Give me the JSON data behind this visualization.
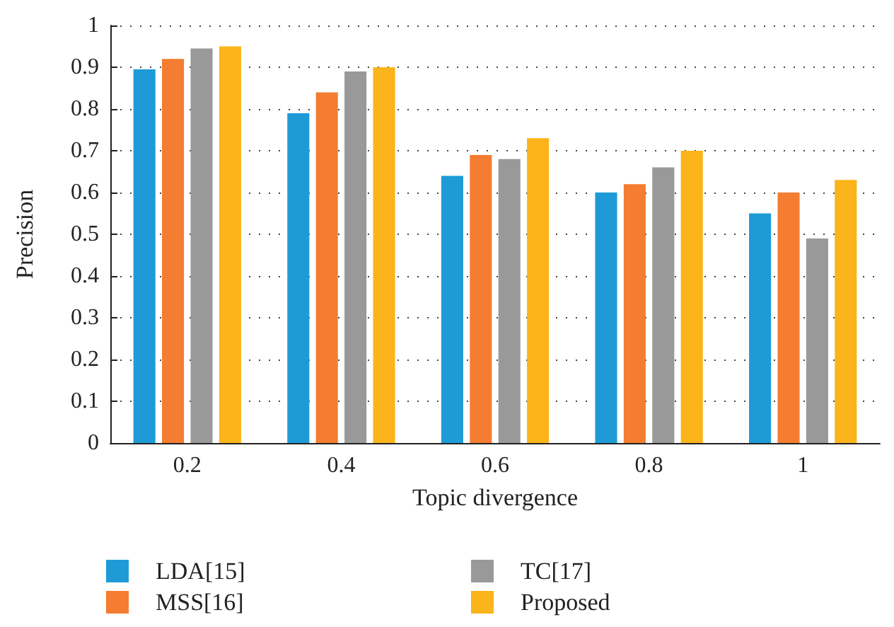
{
  "chart_data": {
    "type": "bar",
    "xlabel": "Topic divergence",
    "ylabel": "Precision",
    "categories": [
      "0.2",
      "0.4",
      "0.6",
      "0.8",
      "1"
    ],
    "series": [
      {
        "name": "LDA[15]",
        "color": "#1e9bd7",
        "values": [
          0.895,
          0.79,
          0.64,
          0.6,
          0.55
        ]
      },
      {
        "name": "MSS[16]",
        "color": "#f47d31",
        "values": [
          0.92,
          0.84,
          0.69,
          0.62,
          0.6
        ]
      },
      {
        "name": "TC[17]",
        "color": "#999999",
        "values": [
          0.945,
          0.89,
          0.68,
          0.66,
          0.49
        ]
      },
      {
        "name": "Proposed",
        "color": "#fbb419",
        "values": [
          0.95,
          0.9,
          0.73,
          0.7,
          0.63
        ]
      }
    ],
    "ylim": [
      0,
      1
    ],
    "yticks": [
      0,
      0.1,
      0.2,
      0.3,
      0.4,
      0.5,
      0.6,
      0.7,
      0.8,
      0.9,
      1
    ],
    "grid": "y",
    "legend": "bottom"
  }
}
